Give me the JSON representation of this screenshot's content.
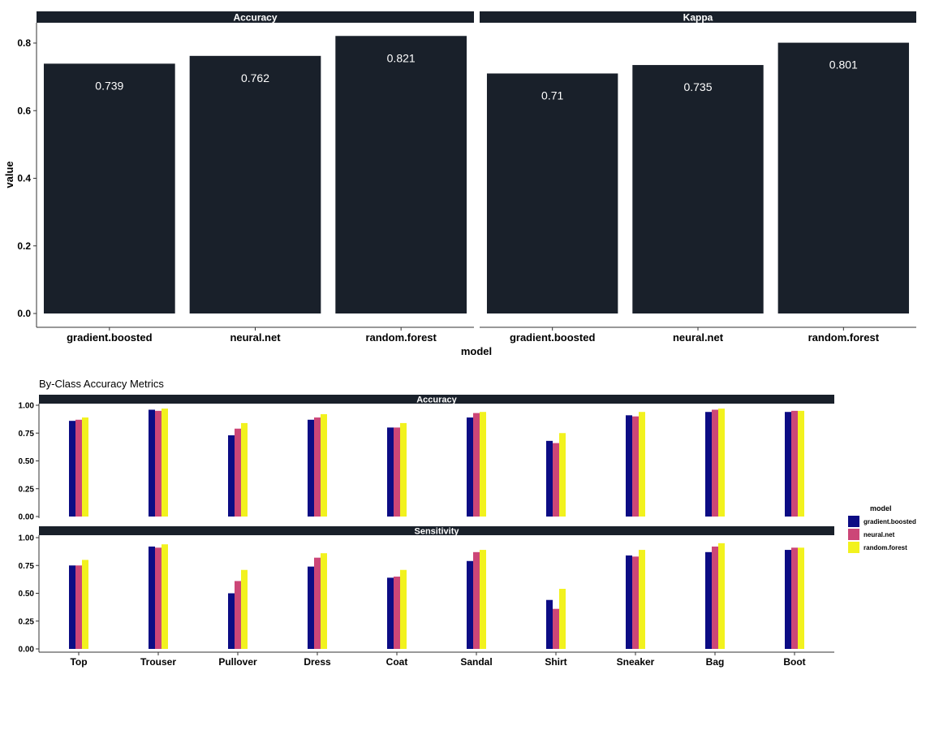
{
  "colors": {
    "strip_bg": "#19202a",
    "strip_text": "#ffffff",
    "bar_dark": "#19202a",
    "gradient.boosted": "#0c0c84",
    "neural.net": "#cc4677",
    "random.forest": "#f2f21e",
    "axis": "#333333",
    "text": "#000000"
  },
  "chart_data": [
    {
      "id": "overall",
      "type": "bar",
      "facet_by": "metric",
      "facets": [
        "Accuracy",
        "Kappa"
      ],
      "categories": [
        "gradient.boosted",
        "neural.net",
        "random.forest"
      ],
      "values": {
        "Accuracy": [
          0.739,
          0.762,
          0.821
        ],
        "Kappa": [
          0.71,
          0.735,
          0.801
        ]
      },
      "data_labels": {
        "Accuracy": [
          "0.739",
          "0.762",
          "0.821"
        ],
        "Kappa": [
          "0.71",
          "0.735",
          "0.801"
        ]
      },
      "title": "",
      "xlabel": "model",
      "ylabel": "value",
      "ylim": [
        0,
        0.82
      ],
      "yticks": [
        "0.0",
        "0.2",
        "0.4",
        "0.6",
        "0.8"
      ],
      "ytick_values": [
        0,
        0.2,
        0.4,
        0.6,
        0.8
      ],
      "grid": false
    },
    {
      "id": "by_class",
      "type": "bar",
      "title": "By-Class Accuracy Metrics",
      "facet_by": "metric",
      "facets": [
        "Accuracy",
        "Sensitivity"
      ],
      "categories": [
        "Top",
        "Trouser",
        "Pullover",
        "Dress",
        "Coat",
        "Sandal",
        "Shirt",
        "Sneaker",
        "Bag",
        "Boot"
      ],
      "series_names": [
        "gradient.boosted",
        "neural.net",
        "random.forest"
      ],
      "series": {
        "Accuracy": [
          {
            "name": "gradient.boosted",
            "values": [
              0.86,
              0.96,
              0.73,
              0.87,
              0.8,
              0.89,
              0.68,
              0.91,
              0.94,
              0.94
            ]
          },
          {
            "name": "neural.net",
            "values": [
              0.87,
              0.95,
              0.79,
              0.89,
              0.8,
              0.93,
              0.66,
              0.9,
              0.96,
              0.95
            ]
          },
          {
            "name": "random.forest",
            "values": [
              0.89,
              0.97,
              0.84,
              0.92,
              0.84,
              0.94,
              0.75,
              0.94,
              0.97,
              0.95
            ]
          }
        ],
        "Sensitivity": [
          {
            "name": "gradient.boosted",
            "values": [
              0.75,
              0.92,
              0.5,
              0.74,
              0.64,
              0.79,
              0.44,
              0.84,
              0.87,
              0.89
            ]
          },
          {
            "name": "neural.net",
            "values": [
              0.75,
              0.91,
              0.61,
              0.82,
              0.65,
              0.87,
              0.36,
              0.83,
              0.92,
              0.91
            ]
          },
          {
            "name": "random.forest",
            "values": [
              0.8,
              0.94,
              0.71,
              0.86,
              0.71,
              0.89,
              0.54,
              0.89,
              0.95,
              0.91
            ]
          }
        ]
      },
      "xlabel": "",
      "ylabel": "",
      "ylim": [
        0,
        1.0
      ],
      "yticks": [
        "0.00",
        "0.25",
        "0.50",
        "0.75",
        "1.00"
      ],
      "ytick_values": [
        0,
        0.25,
        0.5,
        0.75,
        1.0
      ],
      "legend": {
        "title": "model",
        "entries": [
          "gradient.boosted",
          "neural.net",
          "random.forest"
        ],
        "position": "right"
      },
      "grid": false
    }
  ]
}
